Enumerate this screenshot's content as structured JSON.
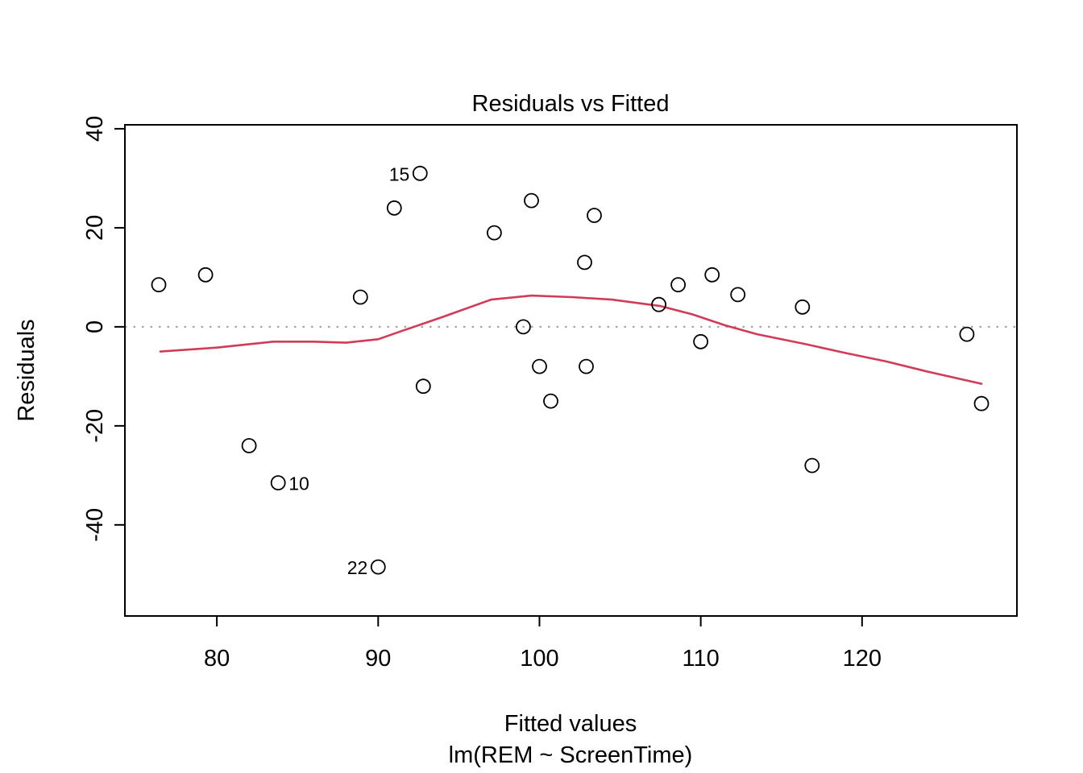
{
  "chart_data": {
    "type": "scatter",
    "title": "Residuals vs Fitted",
    "xlabel": "Fitted values",
    "subtitle": "lm(REM ~ ScreenTime)",
    "ylabel": "Residuals",
    "x_ticks": [
      80,
      90,
      100,
      110,
      120
    ],
    "y_ticks": [
      -40,
      -20,
      0,
      20,
      40
    ],
    "xlim": [
      74.3,
      129.6
    ],
    "ylim": [
      -58.4,
      40.8
    ],
    "zero_line_y": 0,
    "grid": false,
    "legend": "none",
    "points": [
      {
        "x": 76.4,
        "y": 8.5
      },
      {
        "x": 79.3,
        "y": 10.5
      },
      {
        "x": 82.0,
        "y": -24
      },
      {
        "x": 83.8,
        "y": -31.5,
        "label": "10",
        "side": "right"
      },
      {
        "x": 88.9,
        "y": 6
      },
      {
        "x": 90.0,
        "y": -48.5,
        "label": "22",
        "side": "left"
      },
      {
        "x": 91.0,
        "y": 24
      },
      {
        "x": 92.6,
        "y": 31,
        "label": "15",
        "side": "left"
      },
      {
        "x": 92.8,
        "y": -12
      },
      {
        "x": 97.2,
        "y": 19
      },
      {
        "x": 99.0,
        "y": 0
      },
      {
        "x": 99.5,
        "y": 25.5
      },
      {
        "x": 100.0,
        "y": -8
      },
      {
        "x": 100.7,
        "y": -15
      },
      {
        "x": 102.8,
        "y": 13
      },
      {
        "x": 102.9,
        "y": -8
      },
      {
        "x": 103.4,
        "y": 22.5
      },
      {
        "x": 107.4,
        "y": 4.5
      },
      {
        "x": 108.6,
        "y": 8.5
      },
      {
        "x": 110.0,
        "y": -3
      },
      {
        "x": 110.7,
        "y": 10.5
      },
      {
        "x": 112.3,
        "y": 6.5
      },
      {
        "x": 116.3,
        "y": 4
      },
      {
        "x": 116.9,
        "y": -28
      },
      {
        "x": 126.5,
        "y": -1.5
      },
      {
        "x": 127.4,
        "y": -15.5
      }
    ],
    "smooth_line": [
      [
        76.5,
        -5.0
      ],
      [
        80.0,
        -4.2
      ],
      [
        83.5,
        -3.0
      ],
      [
        86.0,
        -3.0
      ],
      [
        88.0,
        -3.2
      ],
      [
        90.0,
        -2.5
      ],
      [
        91.5,
        -0.8
      ],
      [
        94.0,
        2.0
      ],
      [
        97.0,
        5.5
      ],
      [
        99.5,
        6.3
      ],
      [
        102.0,
        6.0
      ],
      [
        104.5,
        5.5
      ],
      [
        107.5,
        4.2
      ],
      [
        109.5,
        2.5
      ],
      [
        111.5,
        0.3
      ],
      [
        113.5,
        -1.5
      ],
      [
        116.5,
        -3.5
      ],
      [
        119.0,
        -5.3
      ],
      [
        121.5,
        -7.0
      ],
      [
        124.0,
        -9.0
      ],
      [
        127.4,
        -11.5
      ]
    ],
    "colors": {
      "smooth_line": "#d23b57",
      "zero_line": "#a6a6a6",
      "point_stroke": "#000000",
      "frame": "#000000"
    }
  }
}
